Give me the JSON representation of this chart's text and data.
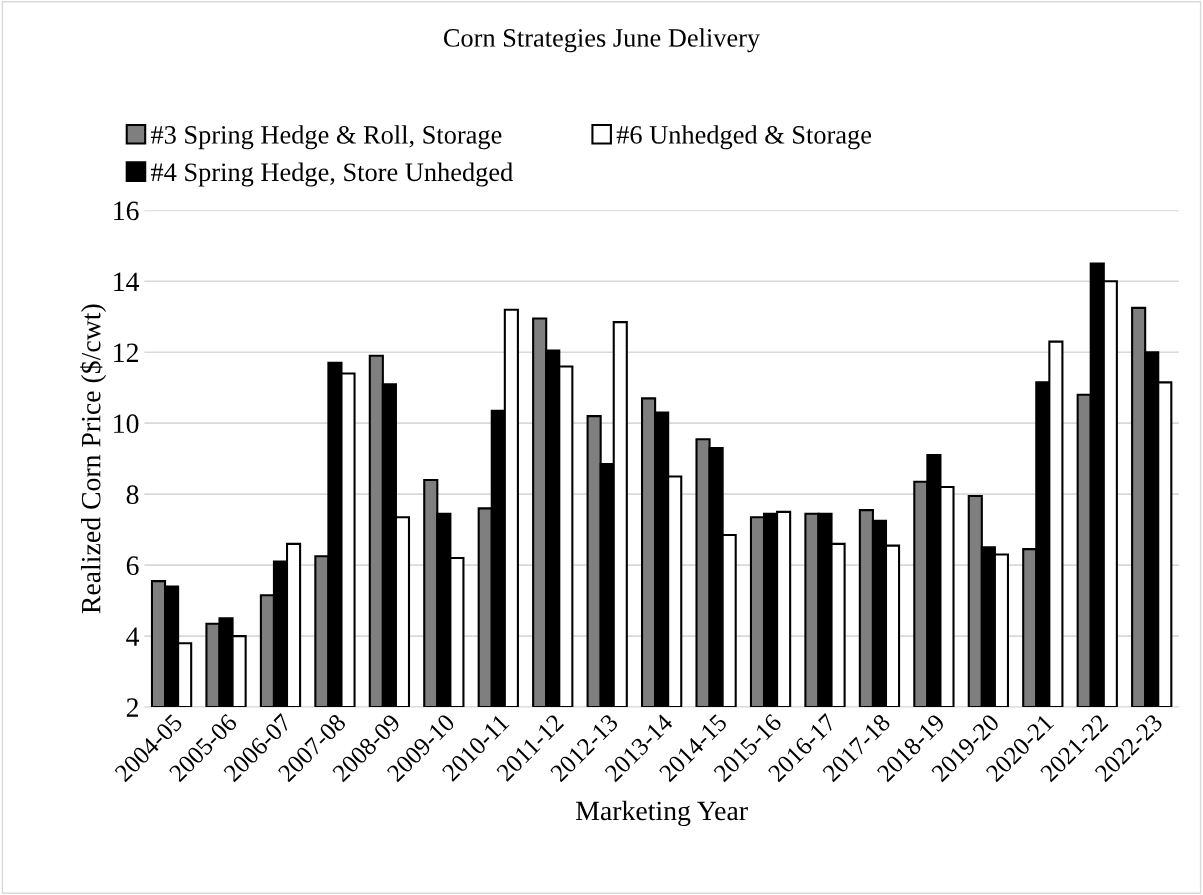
{
  "chart_data": {
    "type": "bar",
    "title": "Corn Strategies June Delivery",
    "xlabel": "Marketing Year",
    "ylabel": "Realized Corn Price ($/cwt)",
    "categories": [
      "2004-05",
      "2005-06",
      "2006-07",
      "2007-08",
      "2008-09",
      "2009-10",
      "2010-11",
      "2011-12",
      "2012-13",
      "2013-14",
      "2014-15",
      "2015-16",
      "2016-17",
      "2017-18",
      "2018-19",
      "2019-20",
      "2020-21",
      "2021-22",
      "2022-23"
    ],
    "series": [
      {
        "name": "#3 Spring Hedge & Roll, Storage",
        "color": "#7f7f7f",
        "values": [
          5.55,
          4.35,
          5.15,
          6.25,
          11.9,
          8.4,
          7.6,
          12.95,
          10.2,
          10.7,
          9.55,
          7.35,
          7.45,
          7.55,
          8.35,
          7.95,
          6.45,
          10.8,
          13.25
        ]
      },
      {
        "name": "#4 Spring Hedge, Store Unhedged",
        "color": "#000000",
        "values": [
          5.4,
          4.5,
          6.1,
          11.7,
          11.1,
          7.45,
          10.35,
          12.05,
          8.85,
          10.3,
          9.3,
          7.45,
          7.45,
          7.25,
          9.1,
          6.5,
          11.15,
          14.5,
          12.0
        ]
      },
      {
        "name": "#6 Unhedged & Storage",
        "color": "#ffffff",
        "values": [
          3.8,
          4.0,
          6.6,
          11.4,
          7.35,
          6.2,
          13.2,
          11.6,
          12.85,
          8.5,
          6.85,
          7.5,
          6.6,
          6.55,
          8.2,
          6.3,
          12.3,
          14.0,
          11.15
        ]
      }
    ],
    "ylim": [
      2,
      16
    ],
    "yticks": [
      2,
      4,
      6,
      8,
      10,
      12,
      14,
      16
    ],
    "grid": "y",
    "legend": "top"
  }
}
